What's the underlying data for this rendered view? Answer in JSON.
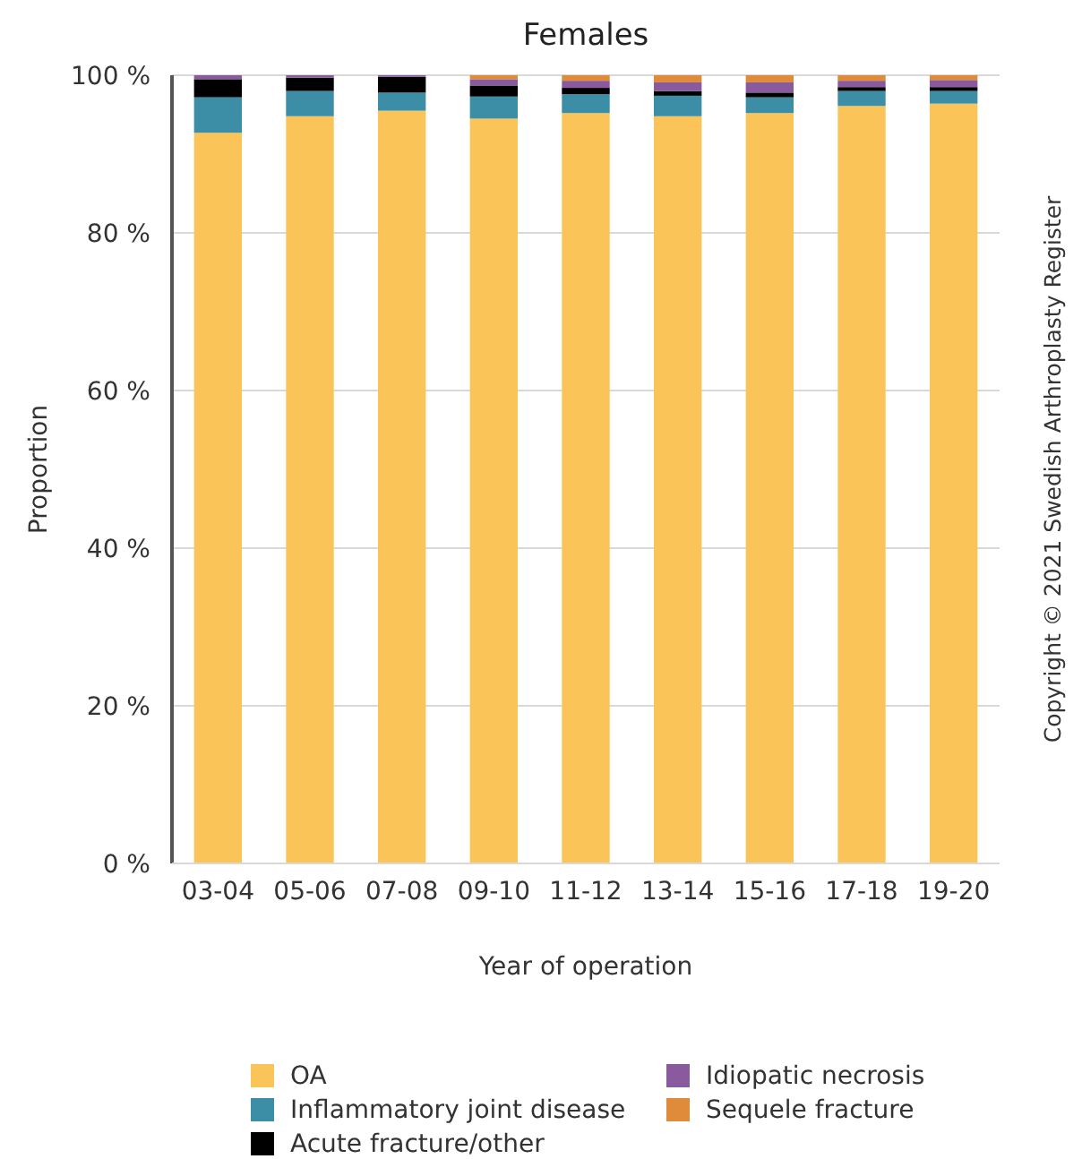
{
  "chart_data": {
    "type": "bar",
    "stacked": true,
    "title": "Females",
    "xlabel": "Year of operation",
    "ylabel": "Proportion",
    "categories": [
      "03-04",
      "05-06",
      "07-08",
      "09-10",
      "11-12",
      "13-14",
      "15-16",
      "17-18",
      "19-20"
    ],
    "series": [
      {
        "name": "OA",
        "color": "#fbc459",
        "values": [
          92.7,
          94.8,
          95.5,
          94.5,
          95.2,
          94.8,
          95.2,
          96.1,
          96.4
        ]
      },
      {
        "name": "Inflammatory joint disease",
        "color": "#3b8ea5",
        "values": [
          4.5,
          3.2,
          2.3,
          2.8,
          2.4,
          2.6,
          2.0,
          1.9,
          1.6
        ]
      },
      {
        "name": "Acute fracture/other",
        "color": "#000000",
        "values": [
          2.3,
          1.7,
          2.0,
          1.4,
          0.8,
          0.6,
          0.6,
          0.5,
          0.5
        ]
      },
      {
        "name": "Idiopatic necrosis",
        "color": "#8a5a9e",
        "values": [
          0.5,
          0.3,
          0.2,
          0.8,
          0.9,
          1.1,
          1.3,
          0.8,
          0.9
        ]
      },
      {
        "name": "Sequele fracture",
        "color": "#e08b3a",
        "values": [
          0,
          0,
          0,
          0.5,
          0.7,
          0.9,
          0.9,
          0.7,
          0.6
        ]
      }
    ],
    "ylim": [
      0,
      100
    ],
    "yticks": [
      {
        "value": 0,
        "label": "0 %"
      },
      {
        "value": 20,
        "label": "20 %"
      },
      {
        "value": 40,
        "label": "40 %"
      },
      {
        "value": 60,
        "label": "60 %"
      },
      {
        "value": 80,
        "label": "80 %"
      },
      {
        "value": 100,
        "label": "100 %"
      }
    ],
    "grid": "y",
    "legend": "bottom",
    "annotations": [
      "Copyright © 2021 Swedish Arthroplasty Register"
    ]
  }
}
